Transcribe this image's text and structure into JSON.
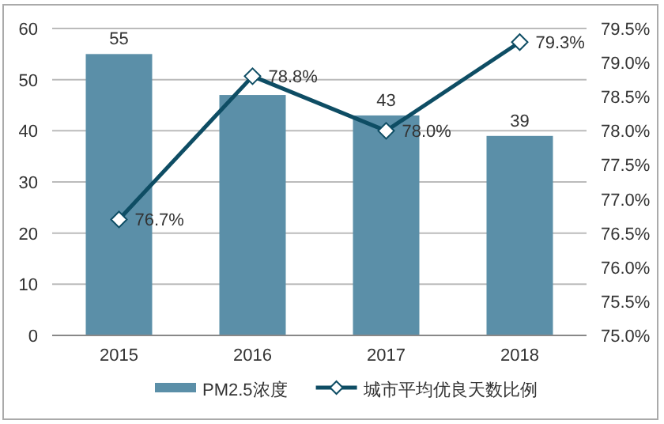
{
  "chart_data": {
    "type": "bar",
    "categories": [
      "2015",
      "2016",
      "2017",
      "2018"
    ],
    "series": [
      {
        "name": "PM2.5浓度",
        "color": "#5b8fa8",
        "values": [
          55,
          47,
          43,
          39
        ],
        "value_labels": [
          "55",
          null,
          "43",
          "39"
        ]
      },
      {
        "name": "城市平均优良天数比例",
        "type": "line",
        "axis": "y2",
        "color": "#0e4d64",
        "marker": "diamond",
        "values": [
          76.7,
          78.8,
          78.0,
          79.3
        ],
        "value_labels": [
          "76.7%",
          "78.8%",
          "78.0%",
          "79.3%"
        ]
      }
    ],
    "ylim": [
      0,
      60
    ],
    "yticks": [
      0,
      10,
      20,
      30,
      40,
      50,
      60
    ],
    "y2lim": [
      75,
      79.5
    ],
    "y2ticks": [
      {
        "value": 75,
        "label": "75.0%"
      },
      {
        "value": 75.5,
        "label": "75.5%"
      },
      {
        "value": 76,
        "label": "76.0%"
      },
      {
        "value": 76.5,
        "label": "76.5%"
      },
      {
        "value": 77,
        "label": "77.0%"
      },
      {
        "value": 77.5,
        "label": "77.5%"
      },
      {
        "value": 78,
        "label": "78.0%"
      },
      {
        "value": 78.5,
        "label": "78.5%"
      },
      {
        "value": 79,
        "label": "79.0%"
      },
      {
        "value": 79.5,
        "label": "79.5%"
      }
    ],
    "grid": "y",
    "legend": "bottom"
  }
}
